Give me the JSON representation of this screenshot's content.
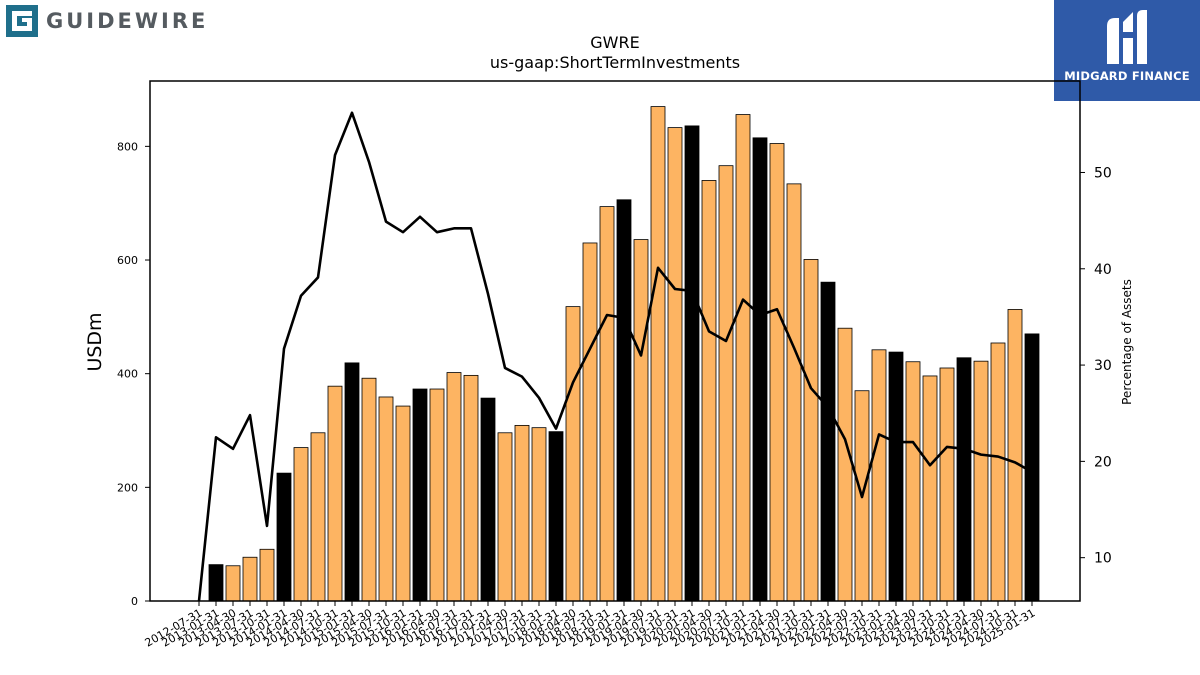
{
  "branding": {
    "left_logo_text": "GUIDEWIRE",
    "right_badge_text": "MIDGARD FINANCE",
    "right_badge_color": "#2f5aa8"
  },
  "chart_data": {
    "type": "bar",
    "title": "GWRE",
    "subtitle": "us-gaap:ShortTermInvestments",
    "ylabel": "USDm",
    "y2label": "Percentage of Assets",
    "ylim": [
      0,
      915
    ],
    "y2lim": [
      5.5,
      59.5
    ],
    "yticks": [
      0,
      200,
      400,
      600,
      800
    ],
    "y2ticks": [
      10,
      20,
      30,
      40,
      50
    ],
    "colors": {
      "bar": "#fdb462",
      "bar_highlight": "#000000",
      "line": "#000000"
    },
    "categories": [
      "2012-07-31",
      "2013-01-31",
      "2013-04-30",
      "2013-07-31",
      "2013-10-31",
      "2014-01-31",
      "2014-04-30",
      "2014-07-31",
      "2014-10-31",
      "2015-01-31",
      "2015-04-30",
      "2015-07-31",
      "2015-10-31",
      "2016-01-31",
      "2016-04-30",
      "2016-07-31",
      "2016-10-31",
      "2017-01-31",
      "2017-04-30",
      "2017-07-31",
      "2017-10-31",
      "2018-01-31",
      "2018-04-30",
      "2018-07-31",
      "2018-10-31",
      "2019-01-31",
      "2019-04-30",
      "2019-07-31",
      "2019-10-31",
      "2020-01-31",
      "2020-04-30",
      "2020-07-31",
      "2020-10-31",
      "2021-01-31",
      "2021-04-30",
      "2021-07-31",
      "2021-10-31",
      "2022-01-31",
      "2022-04-30",
      "2022-07-31",
      "2022-10-31",
      "2023-01-31",
      "2023-04-30",
      "2023-07-31",
      "2023-10-31",
      "2024-01-31",
      "2024-04-30",
      "2024-07-31",
      "2024-10-31",
      "2025-01-31"
    ],
    "series": [
      {
        "kind": "bar",
        "values": [
          0,
          64,
          62,
          77,
          91,
          225,
          270,
          296,
          378,
          419,
          392,
          359,
          343,
          373,
          373,
          402,
          397,
          357,
          296,
          309,
          305,
          298,
          518,
          630,
          694,
          706,
          636,
          870,
          833,
          836,
          740,
          766,
          856,
          815,
          805,
          734,
          601,
          561,
          480,
          370,
          442,
          438,
          421,
          396,
          410,
          428,
          422,
          454,
          513,
          470
        ],
        "highlight": [
          false,
          true,
          false,
          false,
          false,
          true,
          false,
          false,
          false,
          true,
          false,
          false,
          false,
          true,
          false,
          false,
          false,
          true,
          false,
          false,
          false,
          true,
          false,
          false,
          false,
          true,
          false,
          false,
          false,
          true,
          false,
          false,
          false,
          true,
          false,
          false,
          false,
          true,
          false,
          false,
          false,
          true,
          false,
          false,
          false,
          true,
          false,
          false,
          false,
          true
        ]
      },
      {
        "kind": "line",
        "values": [
          5.5,
          22.5,
          21.3,
          24.8,
          13.3,
          31.7,
          37.2,
          39.1,
          51.8,
          56.2,
          51.1,
          44.9,
          43.8,
          45.4,
          43.8,
          44.2,
          44.2,
          37.4,
          29.7,
          28.8,
          26.6,
          23.4,
          28.2,
          31.7,
          35.2,
          34.9,
          31.0,
          40.1,
          37.9,
          37.7,
          33.5,
          32.5,
          36.8,
          35.2,
          35.8,
          31.8,
          27.6,
          25.6,
          22.3,
          16.3,
          22.8,
          22.0,
          22.0,
          19.6,
          21.5,
          21.3,
          20.7,
          20.5,
          19.9,
          18.9
        ]
      }
    ]
  }
}
